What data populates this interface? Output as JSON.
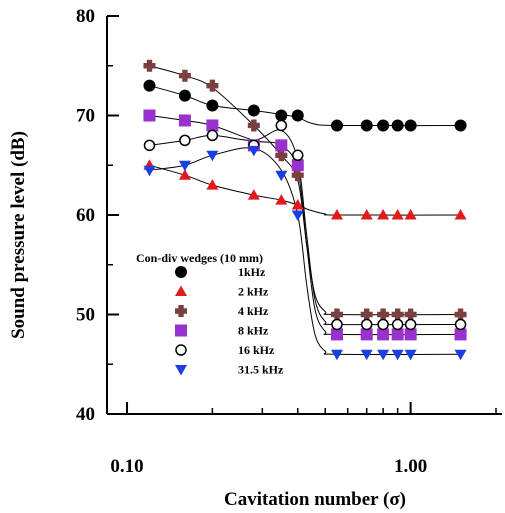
{
  "chart_data": {
    "type": "scatter",
    "title": "",
    "xlabel": "Cavitation number (σ)",
    "ylabel": "Sound pressure level (dB)",
    "x_scale": "log",
    "xlim": [
      0.085,
      2.1
    ],
    "ylim": [
      40,
      80
    ],
    "x_ticks": [
      0.1,
      1.0
    ],
    "x_tick_labels": [
      "0.10",
      "1.00"
    ],
    "y_ticks": [
      40,
      50,
      60,
      70,
      80
    ],
    "y_tick_labels": [
      "40",
      "50",
      "60",
      "70",
      "80"
    ],
    "grid": false,
    "legend_position": "center-left",
    "legend_title": "Con-div wedges (10 mm)",
    "series": [
      {
        "name": "1kHz",
        "marker": "circle-filled",
        "color": "#000000",
        "x": [
          0.12,
          0.16,
          0.2,
          0.28,
          0.35,
          0.4,
          0.55,
          0.7,
          0.8,
          0.9,
          1.0,
          1.5
        ],
        "y": [
          73,
          72,
          71,
          70.5,
          70,
          70,
          69,
          69,
          69,
          69,
          69,
          69
        ],
        "curve": [
          [
            0.12,
            73
          ],
          [
            0.16,
            72
          ],
          [
            0.2,
            71
          ],
          [
            0.28,
            70.5
          ],
          [
            0.35,
            70.1
          ],
          [
            0.4,
            69.8
          ],
          [
            0.45,
            69.2
          ],
          [
            0.55,
            69
          ],
          [
            1.5,
            69
          ]
        ]
      },
      {
        "name": "2 kHz",
        "marker": "triangle-up",
        "color": "#e31a1c",
        "x": [
          0.12,
          0.16,
          0.2,
          0.28,
          0.35,
          0.4,
          0.55,
          0.7,
          0.8,
          0.9,
          1.0,
          1.5
        ],
        "y": [
          65,
          64,
          63,
          62,
          61.5,
          61,
          60,
          60,
          60,
          60,
          60,
          60
        ],
        "curve": [
          [
            0.12,
            65
          ],
          [
            0.16,
            64
          ],
          [
            0.2,
            63
          ],
          [
            0.28,
            62
          ],
          [
            0.35,
            61.5
          ],
          [
            0.4,
            61
          ],
          [
            0.44,
            60.5
          ],
          [
            0.5,
            60.1
          ],
          [
            0.55,
            60
          ],
          [
            1.5,
            60
          ]
        ]
      },
      {
        "name": "4 kHz",
        "marker": "plus",
        "color": "#7b3f3f",
        "x": [
          0.12,
          0.16,
          0.2,
          0.28,
          0.35,
          0.4,
          0.55,
          0.7,
          0.8,
          0.9,
          1.0,
          1.5
        ],
        "y": [
          75,
          74,
          73,
          69,
          66,
          64,
          50,
          50,
          50,
          50,
          50,
          50
        ],
        "curve": [
          [
            0.12,
            75
          ],
          [
            0.16,
            74
          ],
          [
            0.2,
            72.8
          ],
          [
            0.28,
            69
          ],
          [
            0.35,
            66
          ],
          [
            0.4,
            63.5
          ],
          [
            0.43,
            57
          ],
          [
            0.46,
            52
          ],
          [
            0.5,
            50.3
          ],
          [
            0.55,
            50
          ],
          [
            1.5,
            50
          ]
        ]
      },
      {
        "name": "8 kHz",
        "marker": "square",
        "color": "#9932cc",
        "x": [
          0.12,
          0.16,
          0.2,
          0.28,
          0.35,
          0.4,
          0.55,
          0.7,
          0.8,
          0.9,
          1.0,
          1.5
        ],
        "y": [
          70,
          69.5,
          69,
          67,
          67,
          65,
          48,
          48,
          48,
          48,
          48,
          48
        ],
        "curve": [
          [
            0.12,
            70
          ],
          [
            0.16,
            69.5
          ],
          [
            0.2,
            69
          ],
          [
            0.28,
            67.5
          ],
          [
            0.35,
            67
          ],
          [
            0.4,
            64.5
          ],
          [
            0.43,
            57
          ],
          [
            0.46,
            50.5
          ],
          [
            0.5,
            48.3
          ],
          [
            0.55,
            48
          ],
          [
            1.5,
            48
          ]
        ]
      },
      {
        "name": "16 kHz",
        "marker": "circle-open",
        "color": "#000000",
        "x": [
          0.12,
          0.16,
          0.2,
          0.28,
          0.35,
          0.4,
          0.55,
          0.7,
          0.8,
          0.9,
          1.0,
          1.5
        ],
        "y": [
          67,
          67.5,
          68,
          67,
          69,
          66,
          49,
          49,
          49,
          49,
          49,
          49
        ],
        "curve": [
          [
            0.12,
            67
          ],
          [
            0.16,
            67.5
          ],
          [
            0.2,
            68
          ],
          [
            0.28,
            67.5
          ],
          [
            0.35,
            68.5
          ],
          [
            0.4,
            65.5
          ],
          [
            0.43,
            58
          ],
          [
            0.46,
            51.5
          ],
          [
            0.5,
            49.3
          ],
          [
            0.55,
            49
          ],
          [
            1.5,
            49
          ]
        ]
      },
      {
        "name": "31.5 kHz",
        "marker": "triangle-down",
        "color": "#1a3fe0",
        "x": [
          0.12,
          0.16,
          0.2,
          0.28,
          0.35,
          0.4,
          0.55,
          0.7,
          0.8,
          0.9,
          1.0,
          1.5
        ],
        "y": [
          64.5,
          65,
          66,
          66.5,
          64,
          60,
          46,
          46,
          46,
          46,
          46,
          46
        ],
        "curve": [
          [
            0.12,
            64.5
          ],
          [
            0.16,
            65
          ],
          [
            0.2,
            66
          ],
          [
            0.28,
            66.7
          ],
          [
            0.35,
            64.5
          ],
          [
            0.4,
            60
          ],
          [
            0.43,
            53
          ],
          [
            0.46,
            48
          ],
          [
            0.5,
            46.3
          ],
          [
            0.55,
            46
          ],
          [
            1.5,
            46
          ]
        ]
      }
    ]
  }
}
